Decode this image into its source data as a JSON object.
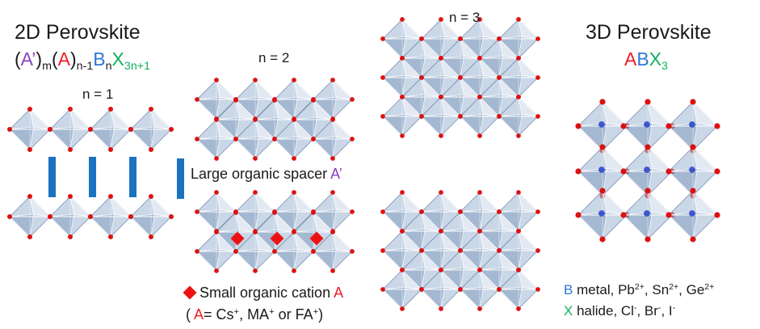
{
  "left_title": "2D Perovskite",
  "formula_2d": {
    "p1": "(",
    "a_prime": "A’",
    "p2": ")",
    "sub_m": "m",
    "p3": "(",
    "a": "A",
    "p4": ")",
    "sub_n1": "n-1",
    "b": "B",
    "sub_n": "n",
    "x": "X",
    "sub_3n1": "3n+1"
  },
  "right_title": "3D Perovskite",
  "formula_3d": {
    "a": "A",
    "b": "B",
    "x": "X",
    "sub_3": "3"
  },
  "n_labels": {
    "n1": "n = 1",
    "n2": "n = 2",
    "n3": "n = 3"
  },
  "spacer_note": {
    "text": "Large organic spacer ",
    "symbol": "A’"
  },
  "cation_note": {
    "text": "Small organic cation ",
    "symbol": "A",
    "line2_open": "( ",
    "line2_symbol": "A",
    "line2_eq": "= Cs",
    "sup1": "+",
    "line2_mid": ", MA",
    "sup2": "+",
    "line2_or": " or FA",
    "sup3": "+",
    "line2_close": ")"
  },
  "b_legend": {
    "symbol": "B",
    "text": " metal, Pb",
    "sup1": "2+",
    "t2": ", Sn",
    "sup2": "2+",
    "t3": ", Ge",
    "sup3": "2+"
  },
  "x_legend": {
    "symbol": "X",
    "text": " halide, Cl",
    "sup1": "-",
    "t2": ", Br",
    "sup2": "-",
    "t3": ", I",
    "sup3": "-"
  },
  "colors": {
    "a_prime": "#8b3fbf",
    "a": "#ee1c25",
    "b": "#2c78d4",
    "x": "#10b05b",
    "spacer": "#1b73c0",
    "octahedron": "#9fb6d4",
    "halide_atom": "#dd1111",
    "metal_atom": "#2540c8"
  }
}
